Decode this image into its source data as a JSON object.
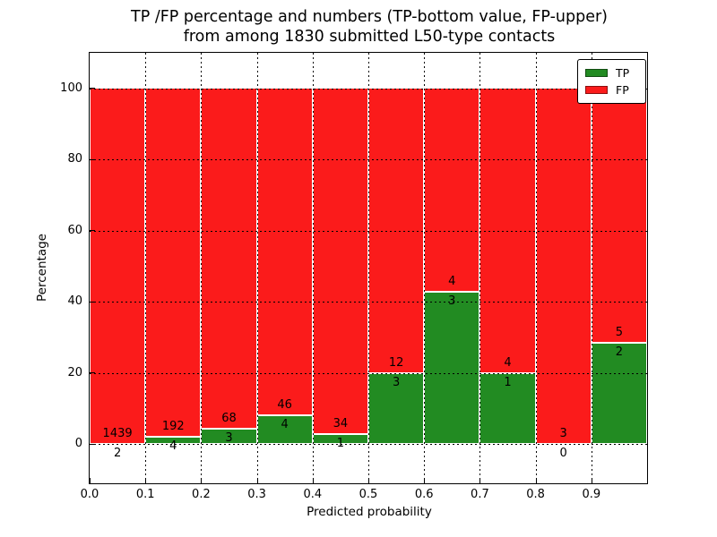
{
  "title": {
    "line1": "TP /FP percentage and numbers (TP-bottom value, FP-upper)",
    "line2": "from among 1830 submitted L50-type contacts"
  },
  "chart_data": {
    "type": "bar",
    "stacked": true,
    "normalized": "each bin scaled to 100%",
    "total_contacts": 1830,
    "title": "TP /FP percentage and numbers (TP-bottom value, FP-upper) from among 1830 submitted L50-type contacts",
    "xlabel": "Predicted probability",
    "ylabel": "Percentage",
    "bin_edges": [
      0.0,
      0.1,
      0.2,
      0.3,
      0.4,
      0.5,
      0.6,
      0.7,
      0.8,
      0.9,
      1.0
    ],
    "categories": [
      "0.0-0.1",
      "0.1-0.2",
      "0.2-0.3",
      "0.3-0.4",
      "0.4-0.5",
      "0.5-0.6",
      "0.6-0.7",
      "0.7-0.8",
      "0.8-0.9",
      "0.9-1.0"
    ],
    "series": [
      {
        "name": "TP",
        "color": "#228b22",
        "counts": [
          2,
          4,
          3,
          4,
          1,
          3,
          3,
          1,
          0,
          2
        ]
      },
      {
        "name": "FP",
        "color": "#fb1b1b",
        "counts": [
          1439,
          192,
          68,
          46,
          34,
          12,
          4,
          4,
          3,
          5
        ]
      }
    ],
    "tp_percent": [
      0.14,
      2.04,
      4.23,
      8.0,
      2.86,
      20.0,
      42.86,
      20.0,
      0.0,
      28.57
    ],
    "x_ticks": [
      "0.0",
      "0.1",
      "0.2",
      "0.3",
      "0.4",
      "0.5",
      "0.6",
      "0.7",
      "0.8",
      "0.9"
    ],
    "y_ticks": [
      0,
      20,
      40,
      60,
      80,
      100
    ],
    "xlim": [
      0.0,
      1.0
    ],
    "ylim": [
      -11,
      110
    ],
    "grid": {
      "style": "dotted",
      "color": "#000000"
    },
    "legend": {
      "position": "upper right",
      "entries": [
        {
          "label": "TP",
          "color": "#228b22"
        },
        {
          "label": "FP",
          "color": "#fb1b1b"
        }
      ]
    }
  }
}
